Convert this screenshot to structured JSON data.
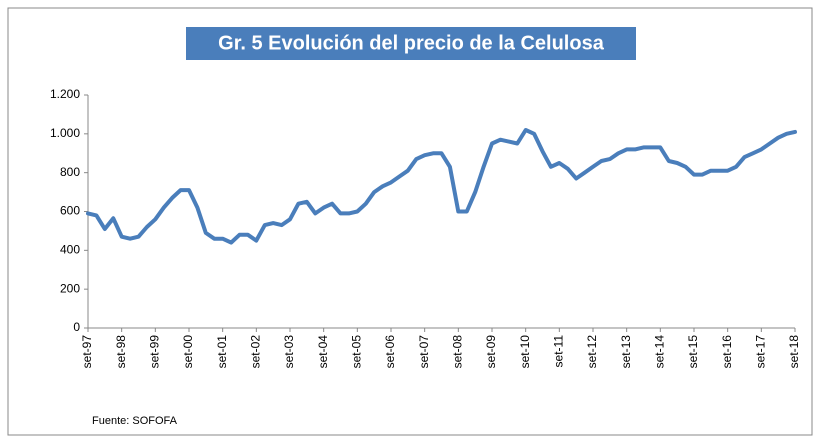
{
  "chart_data": {
    "type": "line",
    "title": "Gr. 5  Evolución del precio de la Celulosa",
    "note": "Fuente: SOFOFA",
    "categories": [
      "set-97",
      null,
      null,
      null,
      "set-98",
      null,
      null,
      null,
      "set-99",
      null,
      null,
      null,
      "set-00",
      null,
      null,
      null,
      "set-01",
      null,
      null,
      null,
      "set-02",
      null,
      null,
      null,
      "set-03",
      null,
      null,
      null,
      "set-04",
      null,
      null,
      null,
      "set-05",
      null,
      null,
      null,
      "set-06",
      null,
      null,
      null,
      "set-07",
      null,
      null,
      null,
      "set-08",
      null,
      null,
      null,
      "set-09",
      null,
      null,
      null,
      "set-10",
      null,
      null,
      null,
      "set-11",
      null,
      null,
      null,
      "set-12",
      null,
      null,
      null,
      "set-13",
      null,
      null,
      null,
      "set-14",
      null,
      null,
      null,
      "set-15",
      null,
      null,
      null,
      "set-16",
      null,
      null,
      null,
      "set-17",
      null,
      null,
      null,
      "set-18"
    ],
    "series": [
      {
        "color": "#4a7ebb",
        "values": [
          590,
          580,
          510,
          565,
          470,
          460,
          470,
          520,
          560,
          620,
          670,
          710,
          710,
          620,
          490,
          460,
          460,
          440,
          480,
          480,
          450,
          530,
          540,
          530,
          560,
          640,
          650,
          590,
          620,
          640,
          590,
          590,
          600,
          640,
          700,
          730,
          750,
          780,
          810,
          870,
          890,
          900,
          900,
          830,
          600,
          600,
          700,
          830,
          950,
          970,
          960,
          950,
          1020,
          1000,
          910,
          830,
          850,
          820,
          770,
          800,
          830,
          860,
          870,
          900,
          920,
          920,
          930,
          930,
          930,
          860,
          850,
          830,
          790,
          790,
          810,
          810,
          810,
          830,
          880,
          900,
          920,
          950,
          980,
          1000,
          1010
        ]
      }
    ],
    "ylim": [
      0,
      1200
    ],
    "yticks": [
      0,
      200,
      400,
      600,
      800,
      {
        "value": 1000,
        "label": "1.000"
      },
      {
        "value": 1200,
        "label": "1.200"
      }
    ]
  }
}
